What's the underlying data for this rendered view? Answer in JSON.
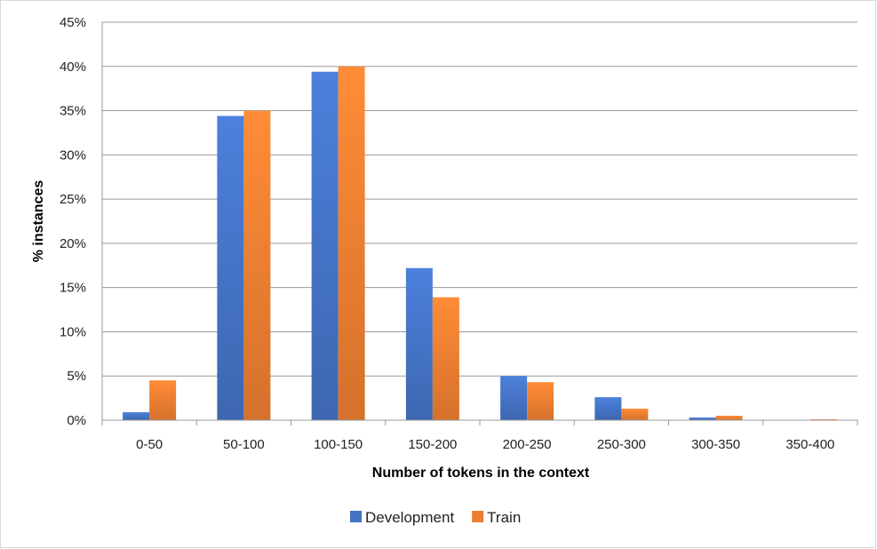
{
  "chart_data": {
    "type": "bar",
    "title": "",
    "xlabel": "Number of tokens in the context",
    "ylabel": "% instances",
    "categories": [
      "0-50",
      "50-100",
      "100-150",
      "150-200",
      "200-250",
      "250-300",
      "300-350",
      "350-400"
    ],
    "series": [
      {
        "name": "Development",
        "color": "#4472c4",
        "values": [
          0.9,
          34.4,
          39.4,
          17.2,
          5.0,
          2.6,
          0.3,
          0.0
        ]
      },
      {
        "name": "Train",
        "color": "#ed7d31",
        "values": [
          4.5,
          35.0,
          40.0,
          13.9,
          4.3,
          1.3,
          0.5,
          0.1
        ]
      }
    ],
    "ylim": [
      0,
      45
    ],
    "yticks": [
      "0%",
      "5%",
      "10%",
      "15%",
      "20%",
      "25%",
      "30%",
      "35%",
      "40%",
      "45%"
    ],
    "grid": true,
    "legend_position": "bottom-center"
  }
}
